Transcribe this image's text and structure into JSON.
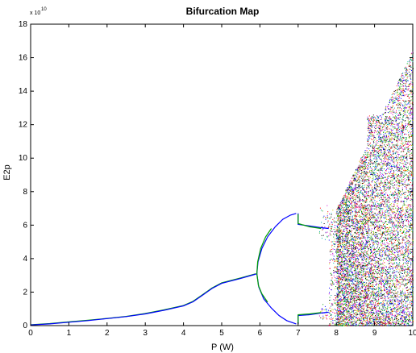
{
  "chart_data": {
    "type": "scatter",
    "title": "Bifurcation Map",
    "xlabel": "P (W)",
    "ylabel": "E2p",
    "y_multiplier_label": "x 10",
    "y_multiplier_exponent": "10",
    "xlim": [
      0,
      10
    ],
    "ylim": [
      0,
      18
    ],
    "x_ticks": [
      "0",
      "1",
      "2",
      "3",
      "4",
      "5",
      "6",
      "7",
      "8",
      "9",
      "10"
    ],
    "y_ticks": [
      "0",
      "2",
      "4",
      "6",
      "8",
      "10",
      "12",
      "14",
      "16",
      "18"
    ],
    "grid": false,
    "branches": [
      {
        "color": "#00a000",
        "points": [
          [
            0,
            0.05
          ],
          [
            0.5,
            0.12
          ],
          [
            1,
            0.22
          ],
          [
            1.5,
            0.32
          ],
          [
            2,
            0.43
          ],
          [
            2.5,
            0.55
          ],
          [
            3,
            0.72
          ],
          [
            3.5,
            0.95
          ],
          [
            4,
            1.2
          ],
          [
            4.25,
            1.45
          ],
          [
            4.5,
            1.85
          ],
          [
            4.75,
            2.25
          ],
          [
            5,
            2.55
          ],
          [
            5.5,
            2.85
          ],
          [
            5.9,
            3.1
          ]
        ]
      },
      {
        "color": "#0000ff",
        "points": [
          [
            0,
            0.04
          ],
          [
            0.5,
            0.1
          ],
          [
            1,
            0.2
          ],
          [
            1.5,
            0.3
          ],
          [
            2,
            0.42
          ],
          [
            2.5,
            0.54
          ],
          [
            3,
            0.7
          ],
          [
            3.5,
            0.92
          ],
          [
            4,
            1.18
          ],
          [
            4.25,
            1.42
          ],
          [
            4.5,
            1.82
          ],
          [
            4.75,
            2.22
          ],
          [
            5,
            2.52
          ],
          [
            5.5,
            2.82
          ],
          [
            5.9,
            3.08
          ]
        ]
      },
      {
        "color": "#0000ff",
        "points": [
          [
            5.92,
            3.1
          ],
          [
            5.95,
            3.8
          ],
          [
            6.05,
            4.6
          ],
          [
            6.2,
            5.3
          ],
          [
            6.4,
            5.9
          ],
          [
            6.6,
            6.35
          ],
          [
            6.8,
            6.6
          ],
          [
            6.95,
            6.7
          ]
        ]
      },
      {
        "color": "#00a000",
        "points": [
          [
            5.92,
            3.1
          ],
          [
            5.94,
            3.8
          ],
          [
            6.02,
            4.6
          ],
          [
            6.15,
            5.3
          ],
          [
            6.3,
            5.8
          ]
        ]
      },
      {
        "color": "#0000ff",
        "points": [
          [
            5.92,
            3.1
          ],
          [
            5.97,
            2.3
          ],
          [
            6.1,
            1.6
          ],
          [
            6.3,
            1.05
          ],
          [
            6.5,
            0.6
          ],
          [
            6.7,
            0.3
          ],
          [
            6.95,
            0.1
          ]
        ]
      },
      {
        "color": "#00a000",
        "points": [
          [
            5.92,
            3.1
          ],
          [
            5.96,
            2.4
          ],
          [
            6.05,
            1.9
          ],
          [
            6.2,
            1.4
          ]
        ]
      },
      {
        "color": "#0000ff",
        "points": [
          [
            7.0,
            6.7
          ],
          [
            7.0,
            6.05
          ],
          [
            7.3,
            5.95
          ],
          [
            7.6,
            5.85
          ],
          [
            7.8,
            5.8
          ]
        ]
      },
      {
        "color": "#0000ff",
        "points": [
          [
            7.0,
            0.1
          ],
          [
            7.0,
            0.6
          ],
          [
            7.3,
            0.65
          ],
          [
            7.6,
            0.75
          ],
          [
            7.8,
            0.8
          ]
        ]
      },
      {
        "color": "#00a000",
        "points": [
          [
            7.0,
            6.65
          ],
          [
            7.0,
            6.1
          ],
          [
            7.3,
            5.9
          ],
          [
            7.6,
            5.8
          ]
        ]
      },
      {
        "color": "#00a000",
        "points": [
          [
            7.0,
            0.12
          ],
          [
            7.0,
            0.65
          ],
          [
            7.3,
            0.7
          ],
          [
            7.6,
            0.78
          ]
        ]
      }
    ],
    "chaotic_regions": [
      {
        "x_range": [
          7.55,
          7.8
        ],
        "y_range": [
          5.0,
          7.2
        ],
        "density": 40
      },
      {
        "x_range": [
          7.55,
          7.8
        ],
        "y_range": [
          0.4,
          1.3
        ],
        "density": 30
      },
      {
        "x_range": [
          7.8,
          8.0
        ],
        "y_range": [
          0.0,
          7.0
        ],
        "density": 200
      },
      {
        "x_range": [
          8.0,
          10.0
        ],
        "y_range": [
          0.0,
          16.5
        ],
        "density": 9000
      }
    ],
    "scatter_colors": [
      "#ff0000",
      "#00a000",
      "#0000ff",
      "#cc00cc",
      "#00aaaa",
      "#000000",
      "#cccc00"
    ]
  }
}
